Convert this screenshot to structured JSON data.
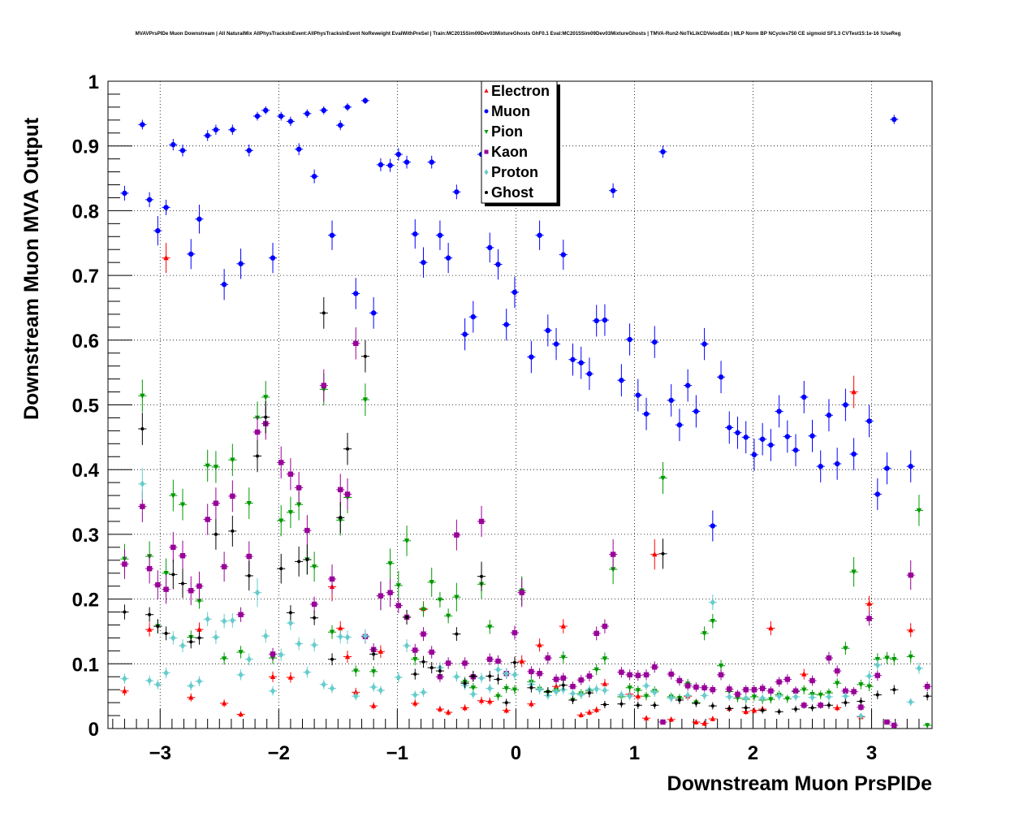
{
  "chart_data": {
    "type": "scatter",
    "title": "MVAVPrsPIDe Muon Downstream | All NaturalMix AllPhysTracksInEvent:AllPhysTracksInEvent NoReweight EvalWithPreSel | Train:MC2015Sim09Dev03MixtureGhosts GhF0.1 Eval:MC2015Sim09Dev03MixtureGhosts | TMVA-Run2-NoTkLikCDVelodEdx | MLP Norm BP NCycles750 CE sigmoid SF1.3 CVTest15:1e-16 !UseReg",
    "xlabel": "Downstream Muon PrsPIDe",
    "ylabel": "Downstream Muon MVA Output",
    "xlim": [
      -3.44,
      3.51
    ],
    "ylim": [
      0,
      1
    ],
    "grid": true,
    "legend_position": "top-center",
    "x_ticks": [
      {
        "v": -3,
        "label": "−3"
      },
      {
        "v": -2,
        "label": "−2"
      },
      {
        "v": -1,
        "label": "−1"
      },
      {
        "v": 0,
        "label": "0"
      },
      {
        "v": 1,
        "label": "1"
      },
      {
        "v": 2,
        "label": "2"
      },
      {
        "v": 3,
        "label": "3"
      }
    ],
    "y_ticks": [
      {
        "v": 0,
        "label": "0"
      },
      {
        "v": 0.1,
        "label": "0.1"
      },
      {
        "v": 0.2,
        "label": "0.2"
      },
      {
        "v": 0.3,
        "label": "0.3"
      },
      {
        "v": 0.4,
        "label": "0.4"
      },
      {
        "v": 0.5,
        "label": "0.5"
      },
      {
        "v": 0.6,
        "label": "0.6"
      },
      {
        "v": 0.7,
        "label": "0.7"
      },
      {
        "v": 0.8,
        "label": "0.8"
      },
      {
        "v": 0.9,
        "label": "0.9"
      },
      {
        "v": 1,
        "label": "1"
      }
    ],
    "series": [
      {
        "name": "Electron",
        "color": "#ff0000",
        "marker": "triangle-up",
        "x": [
          -3.3,
          -3.09,
          -2.95,
          -2.74,
          -2.67,
          -2.46,
          -2.32,
          -2.05,
          -1.9,
          -1.55,
          -1.48,
          -1.42,
          -1.35,
          -1.2,
          -1.14,
          -0.85,
          -0.78,
          -0.64,
          -0.57,
          -0.43,
          -0.29,
          -0.22,
          -0.08,
          0.05,
          0.13,
          0.2,
          0.34,
          0.4,
          0.55,
          0.62,
          0.68,
          0.75,
          0.96,
          1.03,
          1.1,
          1.17,
          1.31,
          1.45,
          1.52,
          1.59,
          1.66,
          1.8,
          1.94,
          2.01,
          2.08,
          2.15,
          2.43,
          2.71,
          2.85,
          2.91,
          2.98,
          3.33
        ],
        "y": [
          0.058,
          0.153,
          0.727,
          0.048,
          0.153,
          0.039,
          0.022,
          0.08,
          0.079,
          0.219,
          0.155,
          0.111,
          0.056,
          0.035,
          0.119,
          0.039,
          0.185,
          0.03,
          0.025,
          0.032,
          0.043,
          0.042,
          0.028,
          0.104,
          0.038,
          0.129,
          0.065,
          0.158,
          0.021,
          0.025,
          0.029,
          0.069,
          0.053,
          0.05,
          0.016,
          0.269,
          0.014,
          0.05,
          0.01,
          0.008,
          0.015,
          0.031,
          0.026,
          0.028,
          0.03,
          0.155,
          0.084,
          0.032,
          0.52,
          0.018,
          0.193,
          0.152
        ]
      },
      {
        "name": "Muon",
        "color": "#0000ff",
        "marker": "circle",
        "x": [
          -3.3,
          -3.15,
          -3.09,
          -3.02,
          -2.95,
          -2.89,
          -2.81,
          -2.74,
          -2.67,
          -2.6,
          -2.53,
          -2.46,
          -2.39,
          -2.32,
          -2.25,
          -2.18,
          -2.11,
          -2.05,
          -1.98,
          -1.9,
          -1.83,
          -1.76,
          -1.7,
          -1.62,
          -1.55,
          -1.48,
          -1.42,
          -1.35,
          -1.27,
          -1.2,
          -1.14,
          -1.06,
          -0.99,
          -0.92,
          -0.85,
          -0.78,
          -0.71,
          -0.64,
          -0.57,
          -0.5,
          -0.43,
          -0.36,
          -0.29,
          -0.22,
          -0.15,
          -0.08,
          -0.01,
          0.13,
          0.2,
          0.27,
          0.34,
          0.4,
          0.48,
          0.55,
          0.62,
          0.68,
          0.75,
          0.82,
          0.89,
          0.96,
          1.03,
          1.1,
          1.17,
          1.24,
          1.31,
          1.38,
          1.45,
          1.52,
          1.59,
          1.66,
          1.73,
          1.8,
          1.87,
          1.94,
          2.01,
          2.08,
          2.15,
          2.22,
          2.29,
          2.36,
          2.43,
          2.5,
          2.57,
          2.64,
          2.71,
          2.78,
          2.85,
          2.98,
          3.05,
          3.13,
          3.19,
          3.33
        ],
        "y": [
          0.827,
          0.933,
          0.817,
          0.769,
          0.805,
          0.902,
          0.893,
          0.733,
          0.787,
          0.916,
          0.925,
          0.686,
          0.925,
          0.718,
          0.893,
          0.946,
          0.955,
          0.727,
          0.946,
          0.938,
          0.895,
          0.95,
          0.853,
          0.955,
          0.762,
          0.932,
          0.96,
          0.672,
          0.97,
          0.642,
          0.871,
          0.87,
          0.887,
          0.875,
          0.764,
          0.72,
          0.875,
          0.762,
          0.727,
          0.829,
          0.609,
          0.636,
          0.887,
          0.743,
          0.717,
          0.624,
          0.674,
          0.574,
          0.762,
          0.615,
          0.594,
          0.732,
          0.57,
          0.565,
          0.548,
          0.63,
          0.631,
          0.831,
          0.538,
          0.601,
          0.515,
          0.486,
          0.597,
          0.891,
          0.507,
          0.469,
          0.53,
          0.49,
          0.594,
          0.313,
          0.543,
          0.465,
          0.457,
          0.45,
          0.423,
          0.447,
          0.438,
          0.49,
          0.451,
          0.43,
          0.512,
          0.452,
          0.405,
          0.484,
          0.409,
          0.5,
          0.424,
          0.475,
          0.362,
          0.402,
          0.941,
          0.405
        ]
      },
      {
        "name": "Pion",
        "color": "#009900",
        "marker": "triangle-down",
        "x": [
          -3.3,
          -3.15,
          -3.09,
          -3.02,
          -2.95,
          -2.89,
          -2.81,
          -2.74,
          -2.67,
          -2.6,
          -2.53,
          -2.46,
          -2.39,
          -2.32,
          -2.25,
          -2.18,
          -2.11,
          -2.05,
          -1.98,
          -1.9,
          -1.83,
          -1.76,
          -1.7,
          -1.62,
          -1.55,
          -1.48,
          -1.42,
          -1.35,
          -1.27,
          -1.2,
          -1.14,
          -1.06,
          -0.99,
          -0.92,
          -0.85,
          -0.78,
          -0.71,
          -0.64,
          -0.57,
          -0.5,
          -0.43,
          -0.36,
          -0.29,
          -0.22,
          -0.15,
          -0.08,
          -0.01,
          0.05,
          0.13,
          0.2,
          0.27,
          0.34,
          0.4,
          0.48,
          0.55,
          0.62,
          0.68,
          0.75,
          0.82,
          0.89,
          0.96,
          1.03,
          1.1,
          1.17,
          1.24,
          1.31,
          1.38,
          1.45,
          1.52,
          1.59,
          1.66,
          1.73,
          1.8,
          1.87,
          1.94,
          2.01,
          2.08,
          2.15,
          2.22,
          2.29,
          2.36,
          2.43,
          2.5,
          2.57,
          2.64,
          2.71,
          2.78,
          2.85,
          2.91,
          2.98,
          3.05,
          3.13,
          3.19,
          3.33,
          3.4,
          3.47
        ],
        "y": [
          0.262,
          0.514,
          0.266,
          0.158,
          0.24,
          0.36,
          0.346,
          0.141,
          0.197,
          0.406,
          0.404,
          0.108,
          0.415,
          0.118,
          0.348,
          0.48,
          0.512,
          0.109,
          0.321,
          0.334,
          0.346,
          0.261,
          0.25,
          0.524,
          0.149,
          0.322,
          0.357,
          0.089,
          0.508,
          0.088,
          0.205,
          0.255,
          0.221,
          0.29,
          0.107,
          0.184,
          0.226,
          0.199,
          0.174,
          0.203,
          0.072,
          0.063,
          0.223,
          0.157,
          0.05,
          0.062,
          0.06,
          0.213,
          0.072,
          0.061,
          0.056,
          0.059,
          0.11,
          0.044,
          0.054,
          0.058,
          0.091,
          0.108,
          0.246,
          0.049,
          0.063,
          0.059,
          0.05,
          0.058,
          0.387,
          0.049,
          0.047,
          0.069,
          0.04,
          0.147,
          0.166,
          0.097,
          0.057,
          0.047,
          0.045,
          0.049,
          0.044,
          0.045,
          0.052,
          0.046,
          0.057,
          0.06,
          0.053,
          0.052,
          0.055,
          0.07,
          0.124,
          0.242,
          0.068,
          0.065,
          0.107,
          0.109,
          0.107,
          0.111,
          0.337,
          0.005
        ]
      },
      {
        "name": "Kaon",
        "color": "#990099",
        "marker": "square",
        "x": [
          -3.3,
          -3.15,
          -3.09,
          -3.02,
          -2.95,
          -2.89,
          -2.81,
          -2.74,
          -2.67,
          -2.6,
          -2.53,
          -2.46,
          -2.39,
          -2.32,
          -2.25,
          -2.18,
          -2.11,
          -2.05,
          -1.98,
          -1.9,
          -1.83,
          -1.76,
          -1.7,
          -1.62,
          -1.55,
          -1.48,
          -1.42,
          -1.35,
          -1.27,
          -1.2,
          -1.14,
          -1.06,
          -0.99,
          -0.92,
          -0.85,
          -0.78,
          -0.71,
          -0.64,
          -0.57,
          -0.5,
          -0.43,
          -0.36,
          -0.29,
          -0.22,
          -0.15,
          -0.08,
          -0.01,
          0.05,
          0.13,
          0.2,
          0.27,
          0.34,
          0.4,
          0.48,
          0.55,
          0.62,
          0.68,
          0.75,
          0.82,
          0.89,
          0.96,
          1.03,
          1.1,
          1.17,
          1.24,
          1.31,
          1.38,
          1.45,
          1.52,
          1.59,
          1.66,
          1.73,
          1.8,
          1.87,
          1.94,
          2.01,
          2.08,
          2.15,
          2.22,
          2.29,
          2.36,
          2.43,
          2.5,
          2.57,
          2.64,
          2.71,
          2.78,
          2.85,
          2.91,
          2.98,
          3.05,
          3.13,
          3.19,
          3.33,
          3.47
        ],
        "y": [
          0.254,
          0.343,
          0.247,
          0.222,
          0.215,
          0.28,
          0.267,
          0.213,
          0.22,
          0.323,
          0.348,
          0.25,
          0.359,
          0.176,
          0.266,
          0.458,
          0.471,
          0.115,
          0.411,
          0.393,
          0.372,
          0.306,
          0.192,
          0.53,
          0.231,
          0.369,
          0.362,
          0.595,
          0.142,
          0.122,
          0.205,
          0.21,
          0.19,
          0.172,
          0.121,
          0.146,
          0.118,
          0.08,
          0.101,
          0.299,
          0.101,
          0.08,
          0.32,
          0.107,
          0.104,
          0.085,
          0.148,
          0.21,
          0.088,
          0.085,
          0.109,
          0.076,
          0.078,
          0.065,
          0.075,
          0.081,
          0.147,
          0.158,
          0.269,
          0.087,
          0.083,
          0.082,
          0.083,
          0.095,
          0.01,
          0.084,
          0.074,
          0.066,
          0.064,
          0.063,
          0.06,
          0.083,
          0.061,
          0.053,
          0.06,
          0.06,
          0.062,
          0.058,
          0.072,
          0.076,
          0.058,
          0.036,
          0.074,
          0.036,
          0.109,
          0.089,
          0.058,
          0.057,
          0.033,
          0.17,
          0.082,
          0.01,
          0.005,
          0.237,
          0.065
        ]
      },
      {
        "name": "Proton",
        "color": "#66cccc",
        "marker": "diamond",
        "x": [
          -3.3,
          -3.15,
          -3.09,
          -3.02,
          -2.95,
          -2.89,
          -2.81,
          -2.74,
          -2.67,
          -2.6,
          -2.53,
          -2.46,
          -2.39,
          -2.32,
          -2.25,
          -2.18,
          -2.11,
          -2.05,
          -1.98,
          -1.9,
          -1.83,
          -1.76,
          -1.7,
          -1.62,
          -1.55,
          -1.48,
          -1.42,
          -1.35,
          -1.27,
          -1.2,
          -1.14,
          -0.99,
          -0.92,
          -0.85,
          -0.78,
          -0.64,
          -0.5,
          -0.43,
          -0.36,
          -0.29,
          -0.22,
          -0.15,
          -0.08,
          -0.01,
          0.13,
          0.2,
          0.27,
          0.34,
          0.4,
          0.48,
          0.55,
          0.62,
          0.68,
          0.75,
          0.89,
          0.96,
          1.1,
          1.17,
          1.31,
          1.45,
          1.59,
          1.66,
          1.8,
          1.94,
          2.08,
          2.22,
          2.36,
          2.5,
          2.64,
          2.78,
          2.91,
          2.98,
          3.05,
          3.33,
          3.4
        ],
        "y": [
          0.077,
          0.378,
          0.074,
          0.068,
          0.086,
          0.14,
          0.128,
          0.066,
          0.073,
          0.169,
          0.141,
          0.166,
          0.167,
          0.083,
          0.107,
          0.21,
          0.143,
          0.058,
          0.114,
          0.163,
          0.131,
          0.087,
          0.129,
          0.068,
          0.062,
          0.142,
          0.141,
          0.05,
          0.143,
          0.064,
          0.059,
          0.079,
          0.128,
          0.052,
          0.056,
          0.094,
          0.08,
          0.067,
          0.053,
          0.078,
          0.062,
          0.091,
          0.085,
          0.083,
          0.068,
          0.06,
          0.051,
          0.057,
          0.06,
          0.054,
          0.052,
          0.06,
          0.061,
          0.059,
          0.052,
          0.05,
          0.066,
          0.056,
          0.047,
          0.051,
          0.051,
          0.195,
          0.049,
          0.047,
          0.047,
          0.05,
          0.049,
          0.048,
          0.049,
          0.05,
          0.019,
          0.081,
          0.098,
          0.041,
          0.093
        ]
      },
      {
        "name": "Ghost",
        "color": "#000000",
        "marker": "cross",
        "x": [
          -3.3,
          -3.15,
          -3.09,
          -3.02,
          -2.95,
          -2.89,
          -2.81,
          -2.74,
          -2.67,
          -2.53,
          -2.39,
          -2.25,
          -2.18,
          -2.11,
          -1.98,
          -1.9,
          -1.83,
          -1.76,
          -1.7,
          -1.62,
          -1.55,
          -1.48,
          -1.42,
          -1.27,
          -1.2,
          -0.92,
          -0.85,
          -0.78,
          -0.71,
          -0.64,
          -0.5,
          -0.43,
          -0.36,
          -0.29,
          -0.22,
          -0.15,
          -0.08,
          -0.01,
          0.13,
          0.27,
          0.4,
          0.48,
          0.62,
          0.75,
          0.89,
          1.03,
          1.17,
          1.24,
          1.38,
          1.52,
          1.66,
          1.8,
          1.94,
          2.08,
          2.22,
          2.36,
          2.5,
          2.64,
          2.78,
          2.91,
          3.05,
          3.19,
          3.47
        ],
        "y": [
          0.18,
          0.463,
          0.176,
          0.158,
          0.147,
          0.238,
          0.224,
          0.134,
          0.14,
          0.3,
          0.305,
          0.236,
          0.421,
          0.481,
          0.247,
          0.179,
          0.258,
          0.261,
          0.171,
          0.642,
          0.107,
          0.326,
          0.432,
          0.575,
          0.115,
          0.172,
          0.084,
          0.103,
          0.094,
          0.089,
          0.146,
          0.07,
          0.081,
          0.235,
          0.081,
          0.076,
          0.04,
          0.102,
          0.063,
          0.057,
          0.067,
          0.044,
          0.055,
          0.037,
          0.038,
          0.036,
          0.036,
          0.27,
          0.044,
          0.039,
          0.035,
          0.031,
          0.032,
          0.028,
          0.026,
          0.03,
          0.032,
          0.036,
          0.04,
          0.042,
          0.052,
          0.06,
          0.05
        ]
      }
    ]
  }
}
